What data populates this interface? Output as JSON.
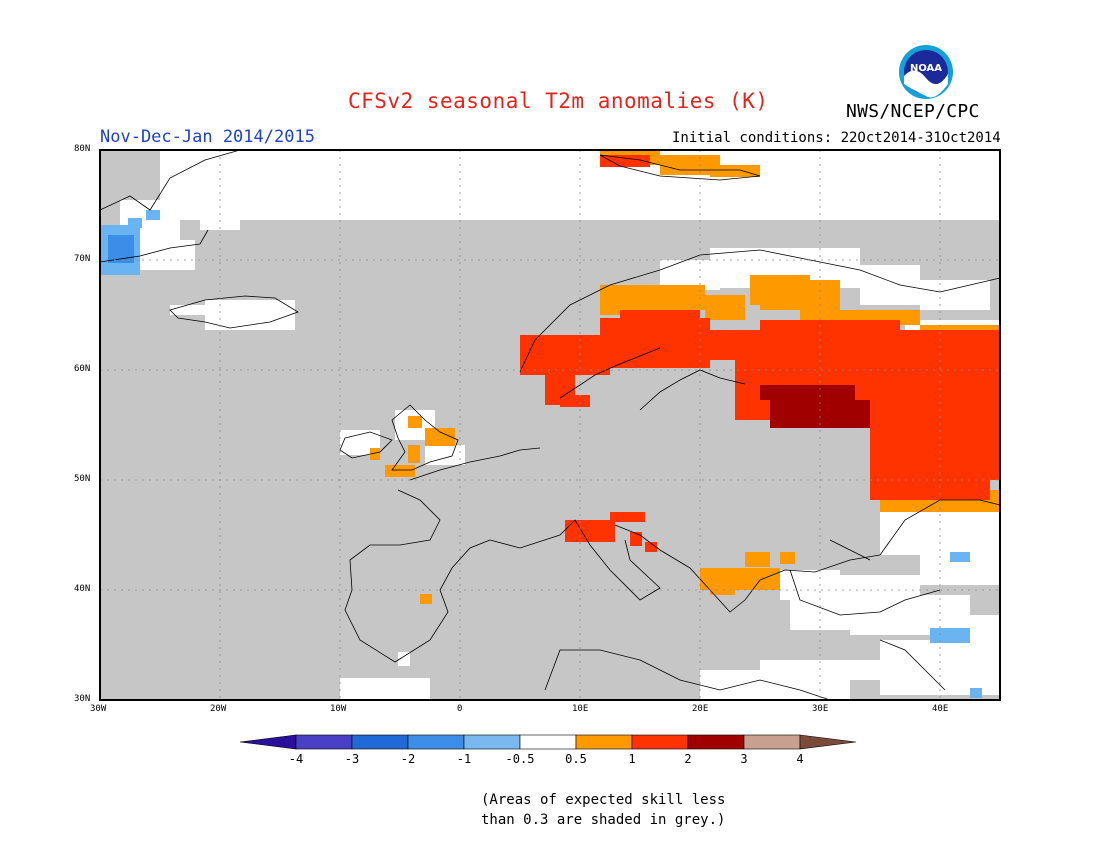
{
  "header": {
    "title": "CFSv2 seasonal T2m anomalies (K)",
    "agency": "NWS/NCEP/CPC",
    "period": "Nov-Dec-Jan 2014/2015",
    "initial_conditions": "Initial conditions: 22Oct2014-31Oct2014"
  },
  "logo": {
    "text": "NOAA"
  },
  "map": {
    "lon_ticks": [
      "30W",
      "20W",
      "10W",
      "0",
      "10E",
      "20E",
      "30E",
      "40E"
    ],
    "lat_ticks": [
      "80N",
      "70N",
      "60N",
      "50N",
      "40N",
      "30N"
    ]
  },
  "colorbar": {
    "labels": [
      "-4",
      "-3",
      "-2",
      "-1",
      "-0.5",
      "0.5",
      "1",
      "2",
      "3",
      "4"
    ],
    "colors": [
      "#2a0f9c",
      "#4a3fc7",
      "#1f6ad6",
      "#3d8ee8",
      "#7ab8f0",
      "#ffffff",
      "#ff9900",
      "#ff3300",
      "#a00000",
      "#c8a090",
      "#7a4a3a"
    ]
  },
  "colors": {
    "grey": "#c6c6c6",
    "orange": "#ff9900",
    "red": "#ff3300",
    "darkred": "#a00000",
    "lightblue": "#6ab4f2",
    "blue": "#3c8de8"
  },
  "footnote": {
    "line1": "(Areas of expected skill less",
    "line2": "than 0.3 are shaded in grey.)"
  }
}
